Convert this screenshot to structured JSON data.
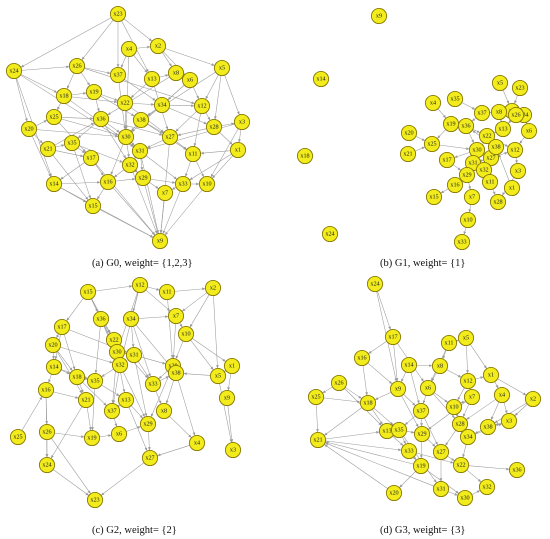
{
  "panels": [
    {
      "id": "a",
      "caption": "(a)   G0, weight= {1,2,3}"
    },
    {
      "id": "b",
      "caption": "(b)   G1, weight= {1}"
    },
    {
      "id": "c",
      "caption": "(c)   G2, weight= {2}"
    },
    {
      "id": "d",
      "caption": "(d)   G3, weight= {3}"
    }
  ],
  "graphs": {
    "a": {
      "nodes": [
        "x23",
        "x4",
        "x2",
        "x24",
        "x26",
        "x5",
        "x37",
        "x13",
        "x8",
        "x6",
        "x18",
        "x19",
        "x22",
        "x34",
        "x12",
        "x25",
        "x36",
        "x38",
        "x3",
        "x20",
        "x30",
        "x27",
        "x28",
        "x21",
        "x35",
        "x31",
        "x1",
        "x17",
        "x32",
        "x11",
        "x14",
        "x16",
        "x29",
        "x33",
        "x10",
        "x7",
        "x15",
        "x9"
      ],
      "edges": [
        [
          "x23",
          "x26"
        ],
        [
          "x23",
          "x2"
        ],
        [
          "x23",
          "x24"
        ],
        [
          "x23",
          "x37"
        ],
        [
          "x23",
          "x13"
        ],
        [
          "x24",
          "x26"
        ],
        [
          "x24",
          "x20"
        ],
        [
          "x24",
          "x14"
        ],
        [
          "x24",
          "x18"
        ],
        [
          "x26",
          "x18"
        ],
        [
          "x26",
          "x19"
        ],
        [
          "x26",
          "x37"
        ],
        [
          "x4",
          "x2"
        ],
        [
          "x4",
          "x37"
        ],
        [
          "x4",
          "x13"
        ],
        [
          "x2",
          "x8"
        ],
        [
          "x2",
          "x6"
        ],
        [
          "x2",
          "x5"
        ],
        [
          "x5",
          "x12"
        ],
        [
          "x5",
          "x28"
        ],
        [
          "x5",
          "x3"
        ],
        [
          "x13",
          "x8"
        ],
        [
          "x13",
          "x22"
        ],
        [
          "x8",
          "x6"
        ],
        [
          "x6",
          "x12"
        ],
        [
          "x6",
          "x34"
        ],
        [
          "x18",
          "x19"
        ],
        [
          "x18",
          "x25"
        ],
        [
          "x19",
          "x22"
        ],
        [
          "x19",
          "x36"
        ],
        [
          "x22",
          "x34"
        ],
        [
          "x22",
          "x30"
        ],
        [
          "x34",
          "x12"
        ],
        [
          "x34",
          "x38"
        ],
        [
          "x12",
          "x28"
        ],
        [
          "x12",
          "x27"
        ],
        [
          "x28",
          "x3"
        ],
        [
          "x28",
          "x1"
        ],
        [
          "x3",
          "x1"
        ],
        [
          "x20",
          "x25"
        ],
        [
          "x20",
          "x21"
        ],
        [
          "x20",
          "x14"
        ],
        [
          "x25",
          "x36"
        ],
        [
          "x36",
          "x30"
        ],
        [
          "x36",
          "x35"
        ],
        [
          "x38",
          "x30"
        ],
        [
          "x38",
          "x27"
        ],
        [
          "x30",
          "x31"
        ],
        [
          "x30",
          "x32"
        ],
        [
          "x27",
          "x11"
        ],
        [
          "x27",
          "x31"
        ],
        [
          "x21",
          "x35"
        ],
        [
          "x21",
          "x17"
        ],
        [
          "x35",
          "x17"
        ],
        [
          "x35",
          "x32"
        ],
        [
          "x31",
          "x32"
        ],
        [
          "x31",
          "x29"
        ],
        [
          "x1",
          "x11"
        ],
        [
          "x1",
          "x10"
        ],
        [
          "x17",
          "x14"
        ],
        [
          "x17",
          "x16"
        ],
        [
          "x32",
          "x16"
        ],
        [
          "x32",
          "x29"
        ],
        [
          "x11",
          "x33"
        ],
        [
          "x11",
          "x10"
        ],
        [
          "x14",
          "x16"
        ],
        [
          "x14",
          "x15"
        ],
        [
          "x16",
          "x15"
        ],
        [
          "x16",
          "x29"
        ],
        [
          "x29",
          "x33"
        ],
        [
          "x29",
          "x7"
        ],
        [
          "x33",
          "x7"
        ],
        [
          "x33",
          "x10"
        ],
        [
          "x7",
          "x9"
        ],
        [
          "x15",
          "x9"
        ],
        [
          "x10",
          "x9"
        ],
        [
          "x29",
          "x9"
        ],
        [
          "x32",
          "x9"
        ],
        [
          "x16",
          "x9"
        ],
        [
          "x31",
          "x9"
        ],
        [
          "x27",
          "x9"
        ],
        [
          "x14",
          "x9"
        ],
        [
          "x17",
          "x9"
        ],
        [
          "x21",
          "x15"
        ],
        [
          "x35",
          "x15"
        ],
        [
          "x33",
          "x9"
        ],
        [
          "x18",
          "x31"
        ],
        [
          "x25",
          "x30"
        ],
        [
          "x19",
          "x38"
        ],
        [
          "x37",
          "x34"
        ],
        [
          "x13",
          "x27"
        ],
        [
          "x36",
          "x27"
        ],
        [
          "x24",
          "x31"
        ],
        [
          "x26",
          "x12"
        ],
        [
          "x4",
          "x30"
        ],
        [
          "x20",
          "x30"
        ],
        [
          "x3",
          "x31"
        ],
        [
          "x5",
          "x38"
        ],
        [
          "x8",
          "x36"
        ],
        [
          "x6",
          "x30"
        ],
        [
          "x22",
          "x27"
        ],
        [
          "x37",
          "x30"
        ],
        [
          "x18",
          "x22"
        ],
        [
          "x21",
          "x36"
        ],
        [
          "x25",
          "x17"
        ],
        [
          "x34",
          "x28"
        ],
        [
          "x12",
          "x11"
        ],
        [
          "x3",
          "x10"
        ],
        [
          "x1",
          "x33"
        ],
        [
          "x28",
          "x27"
        ],
        [
          "x38",
          "x11"
        ],
        [
          "x30",
          "x16"
        ],
        [
          "x31",
          "x33"
        ],
        [
          "x36",
          "x32"
        ]
      ]
    },
    "b": {
      "nodes": [
        "x9",
        "x14",
        "x18",
        "x24",
        "x5",
        "x23",
        "x4",
        "x35",
        "x2",
        "x37",
        "x8",
        "x34",
        "x19",
        "x36",
        "x13",
        "x6",
        "x20",
        "x25",
        "x22",
        "x21",
        "x30",
        "x12",
        "x17",
        "x31",
        "x27",
        "x29",
        "x32",
        "x3",
        "x16",
        "x11",
        "x7",
        "x28",
        "x15",
        "x10",
        "x33",
        "x26",
        "x38",
        "x1"
      ],
      "edges": [
        [
          "x5",
          "x2"
        ],
        [
          "x23",
          "x2"
        ],
        [
          "x2",
          "x34"
        ],
        [
          "x2",
          "x8"
        ],
        [
          "x8",
          "x13"
        ],
        [
          "x8",
          "x37"
        ],
        [
          "x4",
          "x19"
        ],
        [
          "x35",
          "x37"
        ],
        [
          "x37",
          "x36"
        ],
        [
          "x19",
          "x36"
        ],
        [
          "x19",
          "x25"
        ],
        [
          "x36",
          "x22"
        ],
        [
          "x36",
          "x30"
        ],
        [
          "x13",
          "x22"
        ],
        [
          "x34",
          "x6"
        ],
        [
          "x20",
          "x25"
        ],
        [
          "x25",
          "x30"
        ],
        [
          "x22",
          "x12"
        ],
        [
          "x30",
          "x31"
        ],
        [
          "x30",
          "x17"
        ],
        [
          "x31",
          "x29"
        ],
        [
          "x31",
          "x27"
        ],
        [
          "x27",
          "x32"
        ],
        [
          "x27",
          "x12"
        ],
        [
          "x29",
          "x16"
        ],
        [
          "x29",
          "x7"
        ],
        [
          "x32",
          "x11"
        ],
        [
          "x11",
          "x28"
        ],
        [
          "x12",
          "x3"
        ],
        [
          "x16",
          "x15"
        ],
        [
          "x7",
          "x10"
        ],
        [
          "x10",
          "x33"
        ],
        [
          "x3",
          "x28"
        ],
        [
          "x21",
          "x25"
        ],
        [
          "x26",
          "x13"
        ],
        [
          "x38",
          "x36"
        ],
        [
          "x1",
          "x38"
        ],
        [
          "x6",
          "x12"
        ],
        [
          "x17",
          "x29"
        ],
        [
          "x22",
          "x31"
        ]
      ]
    },
    "c": {
      "nodes": [
        "x15",
        "x12",
        "x11",
        "x2",
        "x36",
        "x34",
        "x7",
        "x17",
        "x22",
        "x10",
        "x20",
        "x30",
        "x31",
        "x14",
        "x32",
        "x28",
        "x18",
        "x35",
        "x33",
        "x1",
        "x5",
        "x16",
        "x21",
        "x37",
        "x13",
        "x38",
        "x8",
        "x9",
        "x26",
        "x19",
        "x6",
        "x29",
        "x4",
        "x25",
        "x27",
        "x24",
        "x3",
        "x23"
      ],
      "edges": [
        [
          "x15",
          "x22"
        ],
        [
          "x15",
          "x17"
        ],
        [
          "x15",
          "x36"
        ],
        [
          "x15",
          "x12"
        ],
        [
          "x12",
          "x11"
        ],
        [
          "x12",
          "x34"
        ],
        [
          "x12",
          "x30"
        ],
        [
          "x11",
          "x2"
        ],
        [
          "x2",
          "x7"
        ],
        [
          "x2",
          "x10"
        ],
        [
          "x36",
          "x30"
        ],
        [
          "x36",
          "x22"
        ],
        [
          "x34",
          "x7"
        ],
        [
          "x34",
          "x31"
        ],
        [
          "x7",
          "x10"
        ],
        [
          "x17",
          "x20"
        ],
        [
          "x17",
          "x14"
        ],
        [
          "x22",
          "x30"
        ],
        [
          "x22",
          "x32"
        ],
        [
          "x10",
          "x28"
        ],
        [
          "x10",
          "x1"
        ],
        [
          "x20",
          "x14"
        ],
        [
          "x20",
          "x18"
        ],
        [
          "x30",
          "x31"
        ],
        [
          "x30",
          "x32"
        ],
        [
          "x31",
          "x28"
        ],
        [
          "x31",
          "x33"
        ],
        [
          "x14",
          "x18"
        ],
        [
          "x14",
          "x16"
        ],
        [
          "x32",
          "x35"
        ],
        [
          "x32",
          "x37"
        ],
        [
          "x28",
          "x33"
        ],
        [
          "x28",
          "x38"
        ],
        [
          "x18",
          "x35"
        ],
        [
          "x18",
          "x21"
        ],
        [
          "x35",
          "x13"
        ],
        [
          "x33",
          "x38"
        ],
        [
          "x33",
          "x8"
        ],
        [
          "x1",
          "x5"
        ],
        [
          "x1",
          "x9"
        ],
        [
          "x5",
          "x38"
        ],
        [
          "x16",
          "x21"
        ],
        [
          "x16",
          "x26"
        ],
        [
          "x21",
          "x19"
        ],
        [
          "x37",
          "x13"
        ],
        [
          "x37",
          "x6"
        ],
        [
          "x13",
          "x29"
        ],
        [
          "x38",
          "x8"
        ],
        [
          "x8",
          "x4"
        ],
        [
          "x9",
          "x3"
        ],
        [
          "x26",
          "x24"
        ],
        [
          "x26",
          "x19"
        ],
        [
          "x19",
          "x6"
        ],
        [
          "x6",
          "x29"
        ],
        [
          "x29",
          "x27"
        ],
        [
          "x4",
          "x27"
        ],
        [
          "x25",
          "x16"
        ],
        [
          "x24",
          "x23"
        ],
        [
          "x27",
          "x23"
        ],
        [
          "x5",
          "x3"
        ],
        [
          "x12",
          "x32"
        ],
        [
          "x36",
          "x35"
        ],
        [
          "x17",
          "x31"
        ],
        [
          "x20",
          "x32"
        ],
        [
          "x11",
          "x28"
        ],
        [
          "x34",
          "x33"
        ],
        [
          "x22",
          "x13"
        ],
        [
          "x30",
          "x37"
        ],
        [
          "x31",
          "x29"
        ],
        [
          "x14",
          "x35"
        ],
        [
          "x18",
          "x37"
        ],
        [
          "x35",
          "x19"
        ],
        [
          "x21",
          "x24"
        ],
        [
          "x32",
          "x29"
        ],
        [
          "x28",
          "x29"
        ],
        [
          "x38",
          "x4"
        ],
        [
          "x13",
          "x27"
        ],
        [
          "x16",
          "x24"
        ],
        [
          "x26",
          "x23"
        ],
        [
          "x10",
          "x5"
        ],
        [
          "x7",
          "x28"
        ],
        [
          "x2",
          "x5"
        ],
        [
          "x12",
          "x7"
        ],
        [
          "x15",
          "x30"
        ],
        [
          "x17",
          "x18"
        ],
        [
          "x20",
          "x21"
        ],
        [
          "x36",
          "x32"
        ],
        [
          "x34",
          "x38"
        ],
        [
          "x22",
          "x33"
        ]
      ]
    },
    "d": {
      "nodes": [
        "x24",
        "x17",
        "x11",
        "x5",
        "x16",
        "x14",
        "x8",
        "x12",
        "x1",
        "x26",
        "x9",
        "x6",
        "x7",
        "x4",
        "x2",
        "x25",
        "x18",
        "x37",
        "x10",
        "x28",
        "x34",
        "x3",
        "x38",
        "x13",
        "x35",
        "x29",
        "x33",
        "x27",
        "x21",
        "x19",
        "x22",
        "x36",
        "x31",
        "x30",
        "x32",
        "x20"
      ],
      "edges": [
        [
          "x24",
          "x17"
        ],
        [
          "x17",
          "x16"
        ],
        [
          "x17",
          "x9"
        ],
        [
          "x17",
          "x6"
        ],
        [
          "x11",
          "x8"
        ],
        [
          "x11",
          "x5"
        ],
        [
          "x5",
          "x12"
        ],
        [
          "x5",
          "x1"
        ],
        [
          "x16",
          "x18"
        ],
        [
          "x14",
          "x9"
        ],
        [
          "x14",
          "x8"
        ],
        [
          "x8",
          "x6"
        ],
        [
          "x8",
          "x12"
        ],
        [
          "x12",
          "x7"
        ],
        [
          "x12",
          "x1"
        ],
        [
          "x1",
          "x4"
        ],
        [
          "x1",
          "x2"
        ],
        [
          "x26",
          "x18"
        ],
        [
          "x26",
          "x25"
        ],
        [
          "x9",
          "x37"
        ],
        [
          "x9",
          "x18"
        ],
        [
          "x6",
          "x10"
        ],
        [
          "x6",
          "x37"
        ],
        [
          "x7",
          "x10"
        ],
        [
          "x7",
          "x28"
        ],
        [
          "x4",
          "x3"
        ],
        [
          "x4",
          "x38"
        ],
        [
          "x2",
          "x38"
        ],
        [
          "x25",
          "x18"
        ],
        [
          "x18",
          "x13"
        ],
        [
          "x18",
          "x21"
        ],
        [
          "x37",
          "x35"
        ],
        [
          "x37",
          "x29"
        ],
        [
          "x10",
          "x28"
        ],
        [
          "x10",
          "x34"
        ],
        [
          "x28",
          "x34"
        ],
        [
          "x28",
          "x27"
        ],
        [
          "x34",
          "x3"
        ],
        [
          "x34",
          "x22"
        ],
        [
          "x3",
          "x38"
        ],
        [
          "x13",
          "x35"
        ],
        [
          "x13",
          "x33"
        ],
        [
          "x35",
          "x29"
        ],
        [
          "x35",
          "x33"
        ],
        [
          "x29",
          "x27"
        ],
        [
          "x29",
          "x19"
        ],
        [
          "x33",
          "x19"
        ],
        [
          "x27",
          "x22"
        ],
        [
          "x27",
          "x31"
        ],
        [
          "x21",
          "x13"
        ],
        [
          "x19",
          "x20"
        ],
        [
          "x19",
          "x21"
        ],
        [
          "x22",
          "x36"
        ],
        [
          "x22",
          "x32"
        ],
        [
          "x31",
          "x30"
        ],
        [
          "x31",
          "x21"
        ],
        [
          "x30",
          "x32"
        ],
        [
          "x20",
          "x21"
        ],
        [
          "x9",
          "x29"
        ],
        [
          "x6",
          "x28"
        ],
        [
          "x14",
          "x37"
        ],
        [
          "x16",
          "x9"
        ],
        [
          "x26",
          "x13"
        ],
        [
          "x24",
          "x9"
        ],
        [
          "x11",
          "x6"
        ],
        [
          "x2",
          "x3"
        ],
        [
          "x4",
          "x28"
        ],
        [
          "x38",
          "x34"
        ],
        [
          "x7",
          "x29"
        ],
        [
          "x12",
          "x10"
        ],
        [
          "x37",
          "x27"
        ],
        [
          "x35",
          "x31"
        ],
        [
          "x33",
          "x22"
        ],
        [
          "x19",
          "x30"
        ],
        [
          "x18",
          "x35"
        ],
        [
          "x25",
          "x21"
        ],
        [
          "x21",
          "x33"
        ]
      ]
    }
  }
}
